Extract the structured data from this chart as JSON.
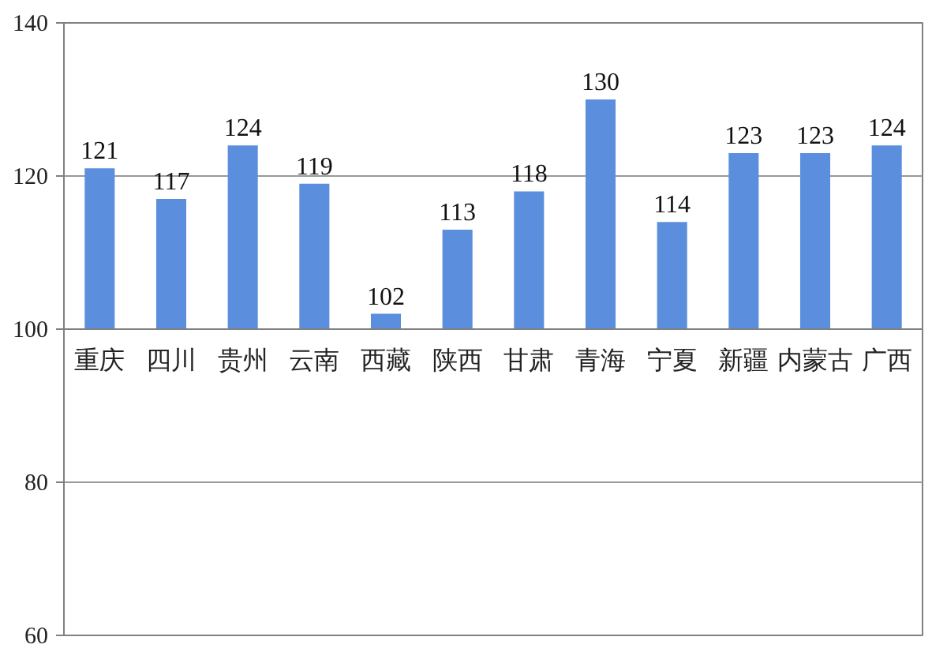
{
  "chart_data": {
    "type": "bar",
    "categories": [
      "重庆",
      "四川",
      "贵州",
      "云南",
      "西藏",
      "陕西",
      "甘肃",
      "青海",
      "宁夏",
      "新疆",
      "内蒙古",
      "广西"
    ],
    "base": [
      100,
      100,
      100,
      100,
      100,
      100,
      100,
      100,
      100,
      100,
      100,
      100
    ],
    "values": [
      21,
      17,
      24,
      19,
      2,
      13,
      18,
      30,
      14,
      23,
      23,
      24
    ],
    "value_labels": [
      "121",
      "117",
      "124",
      "119",
      "102",
      "113",
      "118",
      "130",
      "114",
      "123",
      "123",
      "124"
    ],
    "color": "#5b8fdd",
    "ylim": [
      60,
      140
    ],
    "yticks": [
      60,
      80,
      100,
      120,
      140
    ],
    "grid": "y"
  }
}
